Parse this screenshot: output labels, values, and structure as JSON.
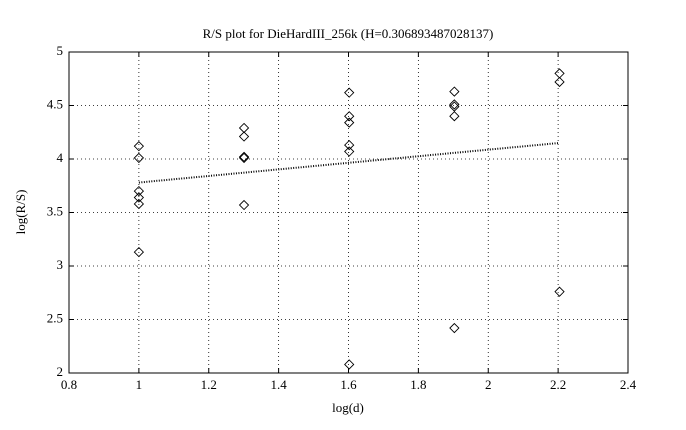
{
  "chart_data": {
    "type": "scatter",
    "title": "R/S plot for DieHardIII_256k (H=0.306893487028137)",
    "x_label": "log(d)",
    "y_label": "log(R/S)",
    "series": [
      {
        "color": "#000000",
        "marker": "diamond",
        "x": [
          1,
          1,
          1,
          1,
          1,
          1,
          1.301,
          1.301,
          1.301,
          1.301,
          1.301,
          1.602,
          1.602,
          1.602,
          1.602,
          1.602,
          1.602,
          1.903,
          1.903,
          1.903,
          1.903,
          1.903,
          2.204,
          2.204,
          2.204
        ],
        "values": [
          4.12,
          4.01,
          3.7,
          3.64,
          3.58,
          3.13,
          4.29,
          4.21,
          4.02,
          4.01,
          3.57,
          4.62,
          4.4,
          4.34,
          4.13,
          4.07,
          2.08,
          4.63,
          4.51,
          4.49,
          4.4,
          2.42,
          4.8,
          4.72,
          2.76
        ]
      },
      {
        "color": "#000000",
        "line": "dotted",
        "x": [
          1,
          2.204
        ],
        "values": [
          3.78,
          4.15
        ]
      }
    ],
    "xlim": [
      0.8,
      2.4
    ],
    "xticks": [
      0.8,
      1,
      1.2,
      1.4,
      1.6,
      1.8,
      2,
      2.2,
      2.4
    ],
    "ylim": [
      2,
      5
    ],
    "yticks": [
      2,
      2.5,
      3,
      3.5,
      4,
      4.5,
      5
    ],
    "grid": true
  }
}
